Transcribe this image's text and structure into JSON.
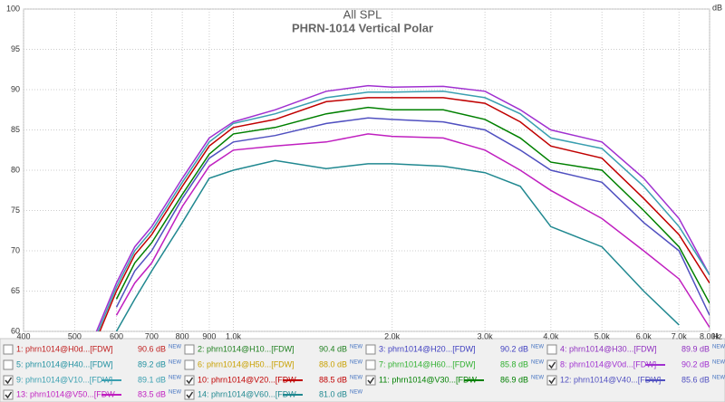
{
  "chart_data": {
    "type": "line",
    "title": "All SPL",
    "subtitle": "PHRN-1014 Vertical Polar",
    "y_unit": "dB",
    "x_unit": "Hz",
    "xscale": "log",
    "grid": true,
    "xlim": [
      400,
      8000
    ],
    "xticks": [
      400,
      500,
      600,
      700,
      800,
      900,
      {
        "value": 1000,
        "label": "1.0k"
      },
      {
        "value": 2000,
        "label": "2.0k"
      },
      {
        "value": 3000,
        "label": "3.0k"
      },
      {
        "value": 4000,
        "label": "4.0k"
      },
      {
        "value": 5000,
        "label": "5.0k"
      },
      {
        "value": 6000,
        "label": "6.0k"
      },
      {
        "value": 7000,
        "label": "7.0k"
      },
      {
        "value": 8000,
        "label": "8.00k"
      }
    ],
    "ylim": [
      60,
      100
    ],
    "yticks": [
      60,
      65,
      70,
      75,
      80,
      85,
      90,
      95,
      100
    ],
    "level_badge": "NEW",
    "x": [
      550,
      600,
      650,
      700,
      800,
      900,
      1000,
      1200,
      1500,
      1800,
      2000,
      2500,
      3000,
      3500,
      4000,
      5000,
      6000,
      7000,
      8000
    ],
    "series": [
      {
        "name": "1: phrn1014@H0d...[FDW]",
        "color": "#c02020",
        "checked": false,
        "level": 90.6,
        "level_label": "90.6 dB"
      },
      {
        "name": "2: phrn1014@H10...[FDW]",
        "color": "#208020",
        "checked": false,
        "level": 90.4,
        "level_label": "90.4 dB"
      },
      {
        "name": "3: phrn1014@H20...[FDW]",
        "color": "#4040c0",
        "checked": false,
        "level": 90.2,
        "level_label": "90.2 dB"
      },
      {
        "name": "4: phrn1014@H30...[FDW]",
        "color": "#9030c0",
        "checked": false,
        "level": 89.9,
        "level_label": "89.9 dB"
      },
      {
        "name": "5: phrn1014@H40...[FDW]",
        "color": "#2090a0",
        "checked": false,
        "level": 89.2,
        "level_label": "89.2 dB"
      },
      {
        "name": "6: phrn1014@H50...[FDW]",
        "color": "#c8a000",
        "checked": false,
        "level": 88.0,
        "level_label": "88.0 dB"
      },
      {
        "name": "7: phrn1014@H60...[FDW]",
        "color": "#30b030",
        "checked": false,
        "level": 85.8,
        "level_label": "85.8 dB"
      },
      {
        "name": "8: phrn1014@V0d...[FDW]",
        "color": "#a030d0",
        "checked": true,
        "level": 90.2,
        "level_label": "90.2 dB",
        "values": [
          60,
          66,
          70.5,
          73,
          79,
          84,
          86,
          87.5,
          89.8,
          90.5,
          90.3,
          90.4,
          89.8,
          87.5,
          85,
          83.5,
          79,
          74,
          67
        ]
      },
      {
        "name": "9: phrn1014@V10...[FDW]",
        "color": "#3a9fb0",
        "checked": true,
        "level": 89.1,
        "level_label": "89.1 dB",
        "values": [
          59.5,
          65.5,
          70,
          72.5,
          78.5,
          83.5,
          85.8,
          87,
          89,
          89.7,
          89.7,
          89.8,
          89,
          87,
          84,
          82.7,
          78,
          73,
          67
        ]
      },
      {
        "name": "10: phrn1014@V20...[FDW",
        "color": "#c00000",
        "checked": true,
        "level": 88.5,
        "level_label": "88.5 dB",
        "values": [
          59,
          65,
          69.5,
          72,
          78,
          83,
          85.3,
          86.3,
          88.5,
          89,
          89,
          89,
          88.3,
          86,
          83,
          81.5,
          76.5,
          72,
          66
        ]
      },
      {
        "name": "11: phrn1014@V30...[FDW",
        "color": "#008000",
        "checked": true,
        "level": 86.9,
        "level_label": "86.9 dB",
        "values": [
          null,
          64,
          68.5,
          71,
          77,
          82,
          84.5,
          85.3,
          87,
          87.8,
          87.5,
          87.5,
          86.3,
          84,
          81,
          80,
          75,
          70.5,
          63.5
        ]
      },
      {
        "name": "12: phrn1014@V40...[FDW]",
        "color": "#5050c0",
        "checked": true,
        "level": 85.6,
        "level_label": "85.6 dB",
        "values": [
          null,
          63,
          67.5,
          70,
          76.5,
          81.5,
          83.5,
          84.3,
          85.8,
          86.5,
          86.3,
          86,
          85,
          82.5,
          80,
          78.5,
          73.5,
          70,
          62
        ]
      },
      {
        "name": "13: phrn1014@V50...[FDW",
        "color": "#c020c0",
        "checked": true,
        "level": 83.5,
        "level_label": "83.5 dB",
        "values": [
          null,
          62,
          66,
          68.5,
          75.5,
          80.5,
          82.5,
          83,
          83.5,
          84.5,
          84.2,
          84,
          82.5,
          80,
          77.5,
          74,
          70,
          66.5,
          60.5
        ]
      },
      {
        "name": "14: phrn1014@V60...[FDW",
        "color": "#208890",
        "checked": true,
        "level": 81.0,
        "level_label": "81.0 dB",
        "values": [
          null,
          60,
          64,
          67.5,
          73.5,
          79,
          80,
          81.2,
          80.2,
          80.8,
          80.8,
          80.5,
          79.7,
          78,
          73,
          70.5,
          65,
          60.8,
          null
        ]
      }
    ]
  }
}
